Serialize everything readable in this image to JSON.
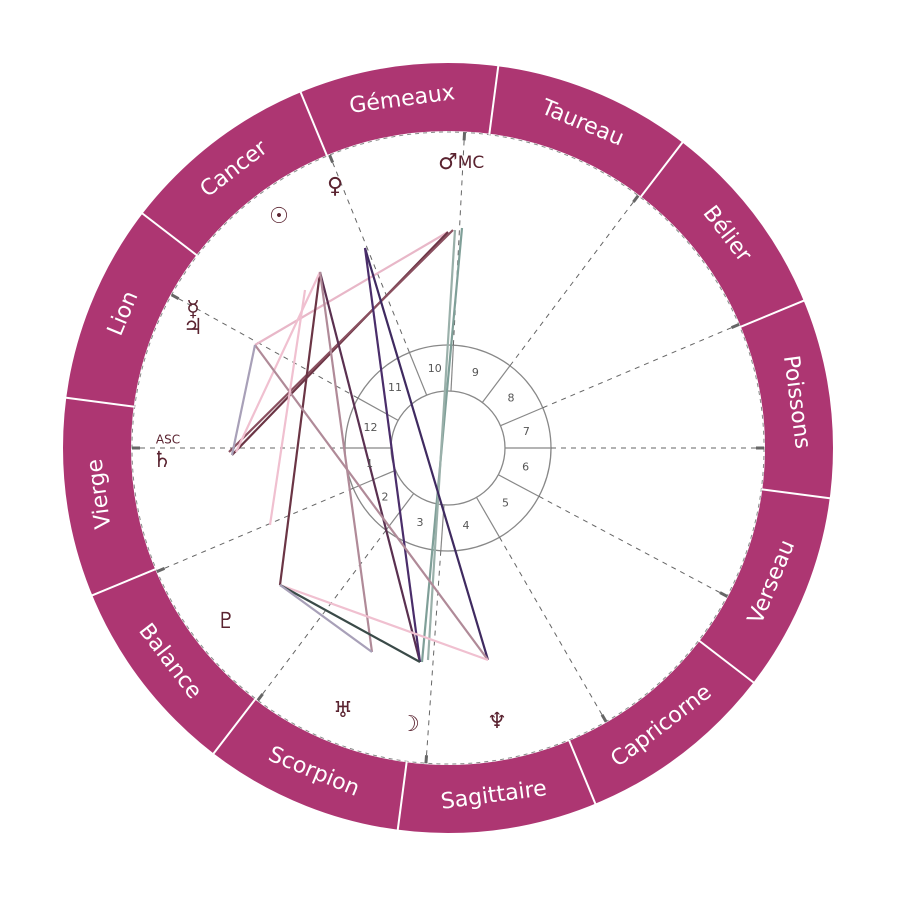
{
  "zodiac": {
    "signs": [
      "Gémeaux",
      "Taureau",
      "Bélier",
      "Poissons",
      "Verseau",
      "Capricorne",
      "Sagittaire",
      "Scorpion",
      "Balance",
      "Vierge",
      "Lion",
      "Cancer"
    ]
  },
  "houses": {
    "numbers": [
      "1",
      "2",
      "3",
      "4",
      "5",
      "6",
      "7",
      "8",
      "9",
      "10",
      "11",
      "12"
    ]
  },
  "angles": {
    "asc": "ASC",
    "mc": "MC"
  },
  "planets": [
    {
      "symbol": "♂"
    },
    {
      "symbol": "♀"
    },
    {
      "symbol": "☉"
    },
    {
      "symbol": "☿"
    },
    {
      "symbol": "♃"
    },
    {
      "symbol": "♄"
    },
    {
      "symbol": "♇"
    },
    {
      "symbol": "♅"
    },
    {
      "symbol": "☽"
    },
    {
      "symbol": "♆"
    }
  ]
}
